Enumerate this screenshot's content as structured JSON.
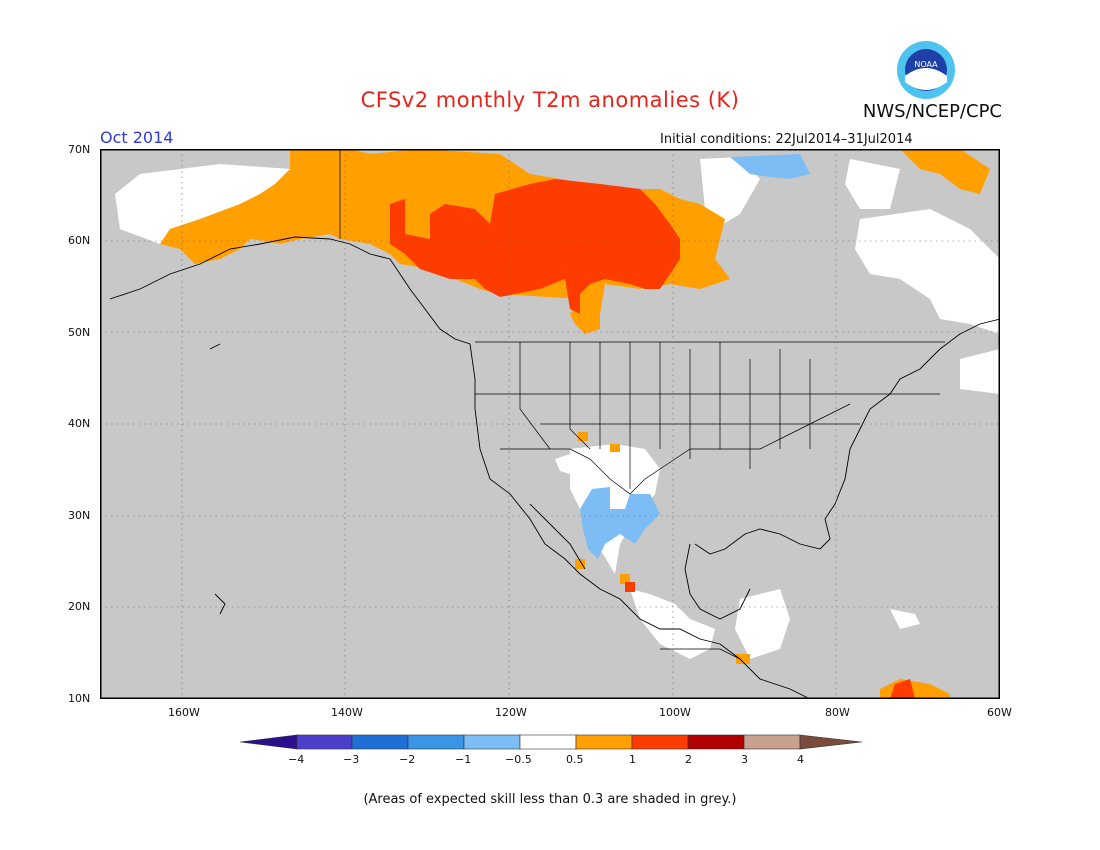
{
  "title": "CFSv2 monthly T2m anomalies (K)",
  "agency": "NWS/NCEP/CPC",
  "logo_text": "NOAA",
  "valid_month": "Oct 2014",
  "initial_conditions": "Initial conditions: 22Jul2014–31Jul2014",
  "footnote": "(Areas of expected skill less than 0.3 are shaded in grey.)",
  "map": {
    "lon_range": [
      -170,
      -60
    ],
    "lat_range": [
      10,
      70
    ],
    "lat_labels": [
      "70N",
      "60N",
      "50N",
      "40N",
      "30N",
      "20N",
      "10N"
    ],
    "lon_labels": [
      "160W",
      "140W",
      "120W",
      "100W",
      "80W",
      "60W"
    ],
    "land_default_color": "#c8c8c8",
    "ocean_color": "#c8c8c8",
    "gridlines": true
  },
  "colorbar": {
    "labels": [
      "−4",
      "−3",
      "−2",
      "−1",
      "−0.5",
      "0.5",
      "1",
      "2",
      "3",
      "4"
    ],
    "colors": [
      "#2a0f8f",
      "#4b3fcc",
      "#1f6fd6",
      "#3a95e8",
      "#7dbdf5",
      "#ffffff",
      "#ff9f00",
      "#ff3c00",
      "#b00000",
      "#c8a090",
      "#7a4a3a"
    ]
  },
  "regions": [
    {
      "name": "alaska-anomaly-0.5-1",
      "level": "0.5 to 1",
      "color": "#ff9f00"
    },
    {
      "name": "canada-anomaly-1-2",
      "level": "1 to 2",
      "color": "#ff3c00"
    },
    {
      "name": "canada-anomaly-0.5-1",
      "level": "0.5 to 1",
      "color": "#ff9f00"
    },
    {
      "name": "southwest-us-anomaly-neg",
      "level": "-1 to -0.5",
      "color": "#7dbdf5"
    },
    {
      "name": "no-skill-white",
      "level": "-0.5 to 0.5",
      "color": "#ffffff"
    }
  ]
}
